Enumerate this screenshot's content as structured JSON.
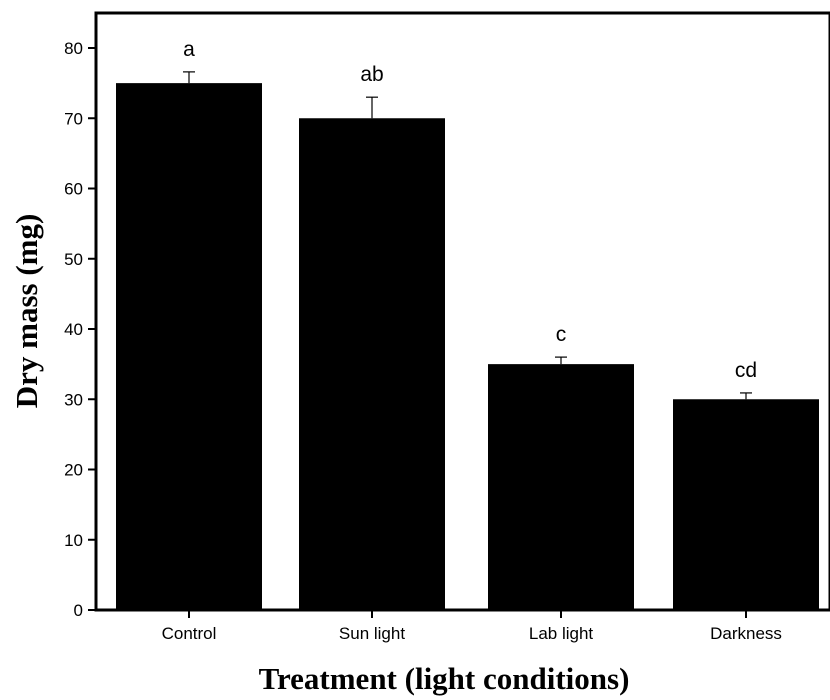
{
  "chart_data": {
    "type": "bar",
    "title": "",
    "xlabel": "Treatment (light conditions)",
    "ylabel": "Dry mass (mg)",
    "categories": [
      "Control",
      "Sun light",
      "Lab light",
      "Darkness"
    ],
    "values": [
      75,
      70,
      35,
      30
    ],
    "error": [
      1.6,
      3.0,
      1.0,
      0.9
    ],
    "significance_labels": [
      "a",
      "ab",
      "c",
      "cd"
    ],
    "ylim": [
      0,
      85
    ],
    "yticks": [
      0,
      10,
      20,
      30,
      40,
      50,
      60,
      70,
      80
    ],
    "grid": false,
    "legend": "none",
    "bar_color": "#000000"
  }
}
